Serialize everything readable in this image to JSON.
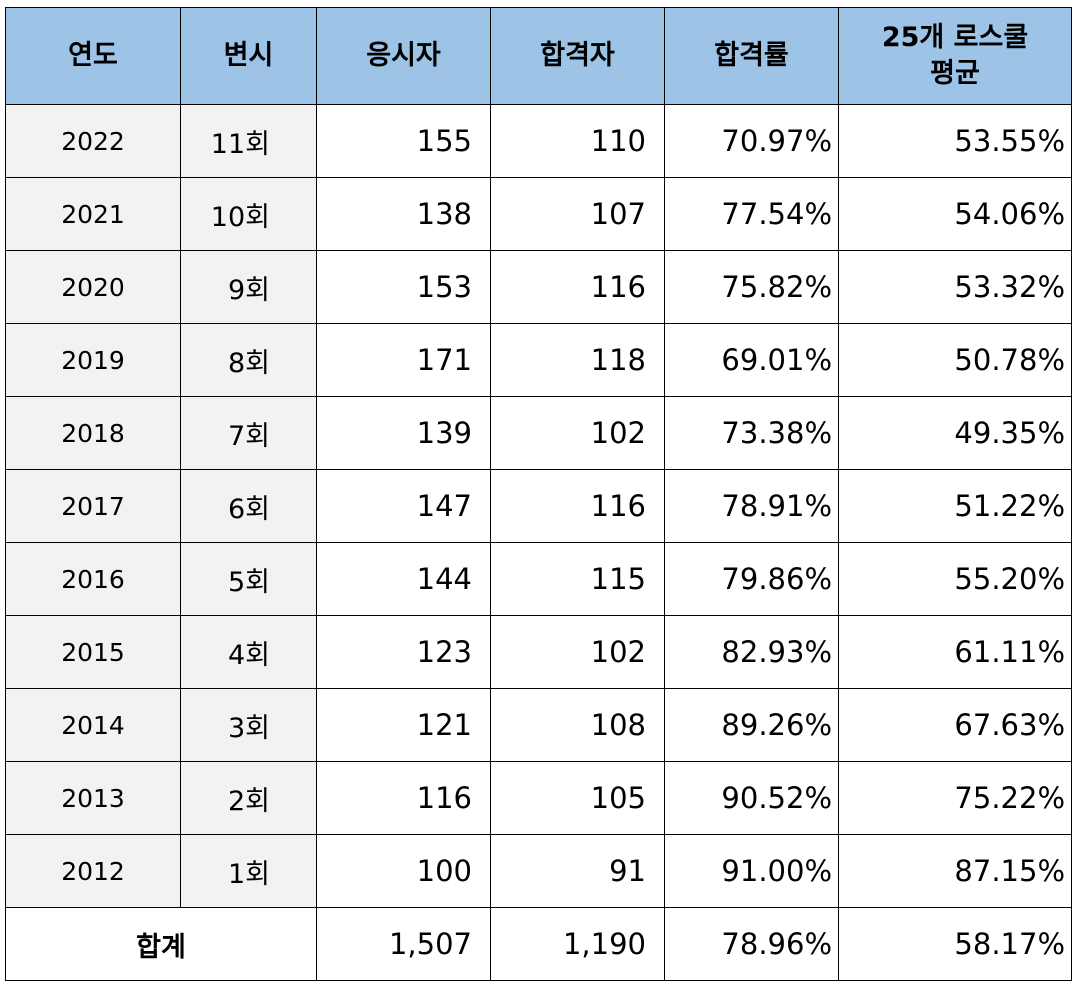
{
  "headers": {
    "year": "연도",
    "bar_exam": "변시",
    "applicants": "응시자",
    "passers": "합격자",
    "pass_rate": "합격률",
    "avg_line1": "25개 로스쿨",
    "avg_line2": "평균"
  },
  "rows": [
    {
      "year": "2022",
      "round": "11회",
      "applicants": "155",
      "passers": "110",
      "pass_rate": "70.97%",
      "average": "53.55%"
    },
    {
      "year": "2021",
      "round": "10회",
      "applicants": "138",
      "passers": "107",
      "pass_rate": "77.54%",
      "average": "54.06%"
    },
    {
      "year": "2020",
      "round": "9회",
      "applicants": "153",
      "passers": "116",
      "pass_rate": "75.82%",
      "average": "53.32%"
    },
    {
      "year": "2019",
      "round": "8회",
      "applicants": "171",
      "passers": "118",
      "pass_rate": "69.01%",
      "average": "50.78%"
    },
    {
      "year": "2018",
      "round": "7회",
      "applicants": "139",
      "passers": "102",
      "pass_rate": "73.38%",
      "average": "49.35%"
    },
    {
      "year": "2017",
      "round": "6회",
      "applicants": "147",
      "passers": "116",
      "pass_rate": "78.91%",
      "average": "51.22%"
    },
    {
      "year": "2016",
      "round": "5회",
      "applicants": "144",
      "passers": "115",
      "pass_rate": "79.86%",
      "average": "55.20%"
    },
    {
      "year": "2015",
      "round": "4회",
      "applicants": "123",
      "passers": "102",
      "pass_rate": "82.93%",
      "average": "61.11%"
    },
    {
      "year": "2014",
      "round": "3회",
      "applicants": "121",
      "passers": "108",
      "pass_rate": "89.26%",
      "average": "67.63%"
    },
    {
      "year": "2013",
      "round": "2회",
      "applicants": "116",
      "passers": "105",
      "pass_rate": "90.52%",
      "average": "75.22%"
    },
    {
      "year": "2012",
      "round": "1회",
      "applicants": "100",
      "passers": "91",
      "pass_rate": "91.00%",
      "average": "87.15%"
    }
  ],
  "total": {
    "label": "합계",
    "applicants": "1,507",
    "passers": "1,190",
    "pass_rate": "78.96%",
    "average": "58.17%"
  }
}
